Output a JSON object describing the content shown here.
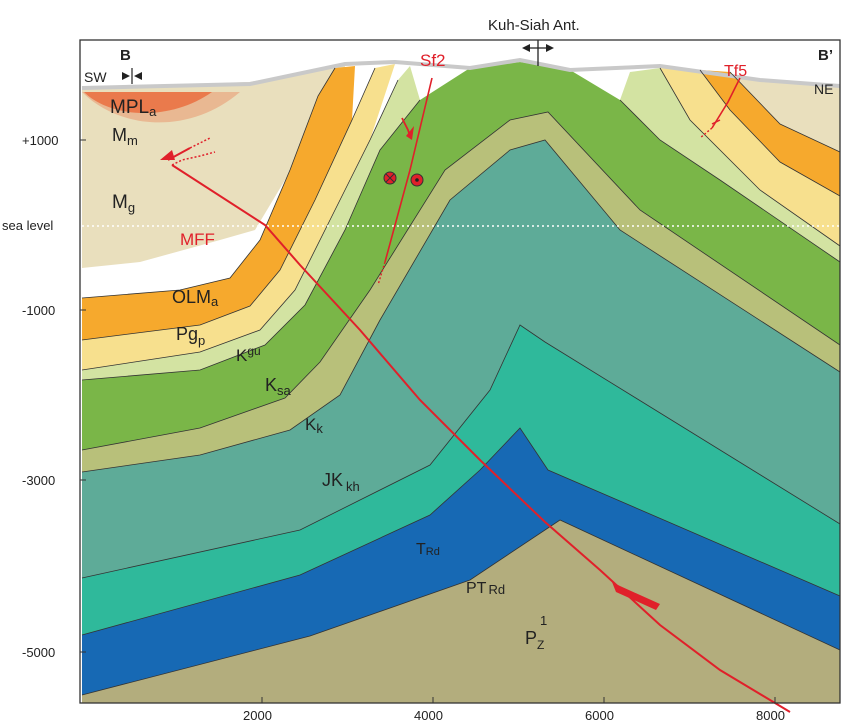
{
  "title": "Kuh-Siah Ant.",
  "section_start": "B",
  "section_end": "B’",
  "sw": "SW",
  "ne": "NE",
  "sea_level": "sea level",
  "y_ticks": [
    "+1000",
    "-1000",
    "-3000",
    "-5000"
  ],
  "x_ticks": [
    "2000",
    "4000",
    "6000",
    "8000"
  ],
  "faults": {
    "sf2": "Sf2",
    "tf5": "Tf5",
    "mff": "MFF"
  },
  "units": {
    "mpla": {
      "base": "MPL",
      "sub": "a"
    },
    "mm": {
      "base": "M",
      "sub": "m"
    },
    "mg": {
      "base": "M",
      "sub": "g"
    },
    "olma": {
      "base": "OLM",
      "sub": "a"
    },
    "pgp": {
      "base": "Pg",
      "sub": "p"
    },
    "kgu": {
      "base": "K",
      "sup": "gu"
    },
    "ksa": {
      "base": "K",
      "sub": "sa"
    },
    "kk": {
      "base": "K",
      "sub": "k"
    },
    "jkkh": {
      "base": "JK",
      "sub": "kh"
    },
    "trd": {
      "base": "T",
      "sub": "Rd"
    },
    "ptrd": {
      "base": "PT",
      "sub": "Rd"
    },
    "pz": {
      "base": "P",
      "sub": "Z",
      "sup": "1"
    }
  },
  "colors": {
    "paleozoic": "#b3ad7d",
    "ptrd": "#1769b4",
    "trd": "#2fb99b",
    "jkkh": "#5eab98",
    "kk": "#b8c07a",
    "ksa": "#7ab648",
    "kgu": "#d3e3a2",
    "pgp": "#f7e08e",
    "olma": "#f6a92d",
    "mg": "#e9dfbd",
    "mm": "#e9b892",
    "mpla": "#ea7a4c",
    "fault": "#e0202a"
  }
}
